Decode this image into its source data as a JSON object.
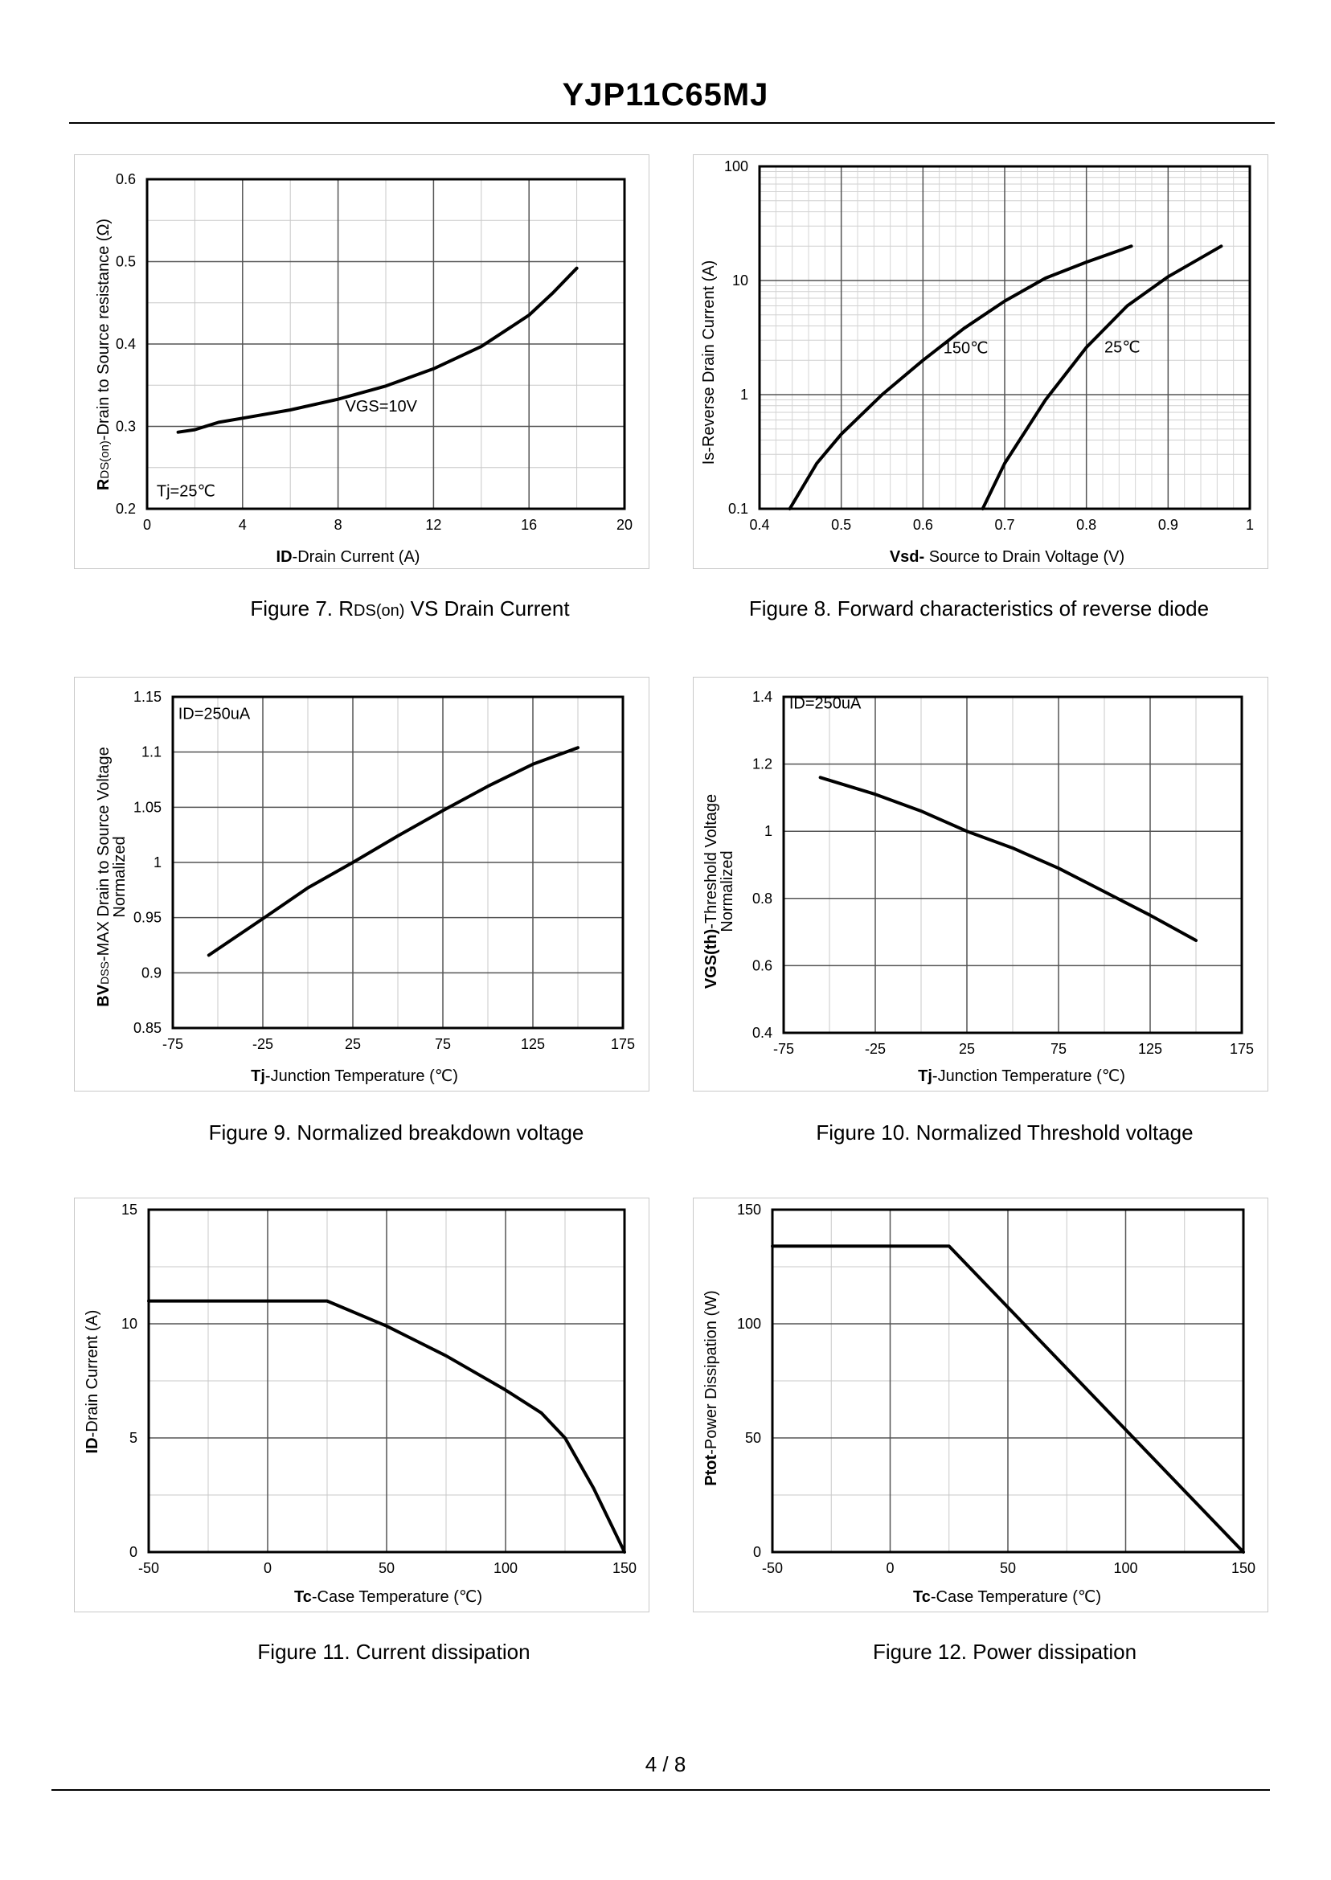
{
  "page": {
    "title": "YJP11C65MJ",
    "page_number": "4 / 8"
  },
  "chart_data": [
    {
      "id": "fig7",
      "type": "line",
      "caption_pre": "Figure 7.  R",
      "caption_sub": "DS(on)",
      "caption_post": " VS Drain Current",
      "ylabel_bold": "R",
      "ylabel_sub": "DS(on)",
      "ylabel_rest": "-Drain to Source resistance (Ω)",
      "xlabel_bold": "ID",
      "xlabel_rest": "-Drain Current (A)",
      "xlim": [
        0,
        20
      ],
      "ylim": [
        0.2,
        0.6
      ],
      "xticks": [
        0,
        4,
        8,
        12,
        16,
        20
      ],
      "xtick_labels": [
        "0",
        "4",
        "8",
        "12",
        "16",
        "20"
      ],
      "xminor": [
        2,
        6,
        10,
        14,
        18
      ],
      "yticks": [
        0.2,
        0.3,
        0.4,
        0.5,
        0.6
      ],
      "ytick_labels": [
        "0.2",
        "0.3",
        "0.4",
        "0.5",
        "0.6"
      ],
      "yminor": [
        0.25,
        0.35,
        0.45,
        0.55
      ],
      "annotations": [
        {
          "text": "VGS=10V",
          "x": 8.3,
          "y": 0.318
        },
        {
          "text": "Tj=25℃",
          "x": 0.4,
          "y": 0.215
        }
      ],
      "series": [
        {
          "name": "VGS=10V",
          "x": [
            1.3,
            2,
            3,
            4,
            6,
            8,
            10,
            12,
            14,
            16,
            17,
            18
          ],
          "y": [
            0.293,
            0.296,
            0.305,
            0.31,
            0.32,
            0.333,
            0.349,
            0.37,
            0.397,
            0.435,
            0.462,
            0.492
          ]
        }
      ]
    },
    {
      "id": "fig8",
      "type": "line",
      "yscale": "log",
      "caption": "Figure 8.  Forward characteristics of reverse diode",
      "ylabel": "Is-Reverse  Drain Current  (A)",
      "xlabel_bold": "Vsd-",
      "xlabel_rest": " Source to Drain Voltage (V)",
      "xlim": [
        0.4,
        1.0
      ],
      "ylim": [
        0.1,
        100
      ],
      "xticks": [
        0.4,
        0.5,
        0.6,
        0.7,
        0.8,
        0.9,
        1.0
      ],
      "xtick_labels": [
        "0.4",
        "0.5",
        "0.6",
        "0.7",
        "0.8",
        "0.9",
        "1"
      ],
      "yticks": [
        0.1,
        1,
        10,
        100
      ],
      "ytick_labels": [
        "0.1",
        "1",
        "10",
        "100"
      ],
      "annotations": [
        {
          "text": "150℃",
          "x": 0.625,
          "y": 2.3
        },
        {
          "text": "25℃",
          "x": 0.822,
          "y": 2.35
        }
      ],
      "series": [
        {
          "name": "150℃",
          "x": [
            0.437,
            0.47,
            0.5,
            0.55,
            0.6,
            0.65,
            0.7,
            0.75,
            0.8,
            0.855
          ],
          "y": [
            0.1,
            0.25,
            0.45,
            1.0,
            2.0,
            3.8,
            6.6,
            10.5,
            14.5,
            20
          ]
        },
        {
          "name": "25℃",
          "x": [
            0.673,
            0.7,
            0.75,
            0.8,
            0.85,
            0.9,
            0.965
          ],
          "y": [
            0.1,
            0.25,
            0.9,
            2.6,
            6.0,
            10.8,
            20
          ]
        }
      ]
    },
    {
      "id": "fig9",
      "type": "line",
      "caption": "Figure 9.  Normalized breakdown voltage",
      "ylabel1_bold": "BV",
      "ylabel1_sub": "DSS",
      "ylabel1_rest": "-MAX Drain to Source Voltage",
      "ylabel2": "Normalized",
      "xlabel_bold": "Tj",
      "xlabel_rest": "-Junction  Temperature  (℃)",
      "xlim": [
        -75,
        175
      ],
      "ylim": [
        0.85,
        1.15
      ],
      "xticks": [
        -75,
        -25,
        25,
        75,
        125,
        175
      ],
      "xtick_labels": [
        "-75",
        "-25",
        "25",
        "75",
        "125",
        "175"
      ],
      "xminor": [
        -50,
        0,
        50,
        100,
        150
      ],
      "yticks": [
        0.85,
        0.9,
        0.95,
        1.0,
        1.05,
        1.1,
        1.15
      ],
      "ytick_labels": [
        "0.85",
        "0.9",
        "0.95",
        "1",
        "1.05",
        "1.1",
        "1.15"
      ],
      "annotations": [
        {
          "text": "ID=250uA",
          "x": -72,
          "y": 1.13
        }
      ],
      "series": [
        {
          "name": "ID=250uA",
          "x": [
            -55,
            -25,
            0,
            25,
            50,
            75,
            100,
            125,
            150
          ],
          "y": [
            0.916,
            0.949,
            0.977,
            1.0,
            1.024,
            1.047,
            1.069,
            1.089,
            1.104
          ]
        }
      ]
    },
    {
      "id": "fig10",
      "type": "line",
      "caption": "Figure 10.  Normalized Threshold voltage",
      "ylabel1_bold": "VGS(th)",
      "ylabel1_rest": "-Threshold  Voltage",
      "ylabel2": "Normalized",
      "xlabel_bold": "Tj",
      "xlabel_rest": "-Junction  Temperature  (℃)",
      "xlim": [
        -75,
        175
      ],
      "ylim": [
        0.4,
        1.4
      ],
      "xticks": [
        -75,
        -25,
        25,
        75,
        125,
        175
      ],
      "xtick_labels": [
        "-75",
        "-25",
        "25",
        "75",
        "125",
        "175"
      ],
      "xminor": [
        -50,
        0,
        50,
        100,
        150
      ],
      "yticks": [
        0.4,
        0.6,
        0.8,
        1.0,
        1.2,
        1.4
      ],
      "ytick_labels": [
        "0.4",
        "0.6",
        "0.8",
        "1",
        "1.2",
        "1.4"
      ],
      "annotations": [
        {
          "text": "ID=250uA",
          "x": -72,
          "y": 1.365
        }
      ],
      "series": [
        {
          "name": "ID=250uA",
          "x": [
            -55,
            -25,
            0,
            25,
            50,
            75,
            100,
            125,
            150
          ],
          "y": [
            1.16,
            1.11,
            1.06,
            1.0,
            0.95,
            0.89,
            0.82,
            0.75,
            0.675
          ]
        }
      ]
    },
    {
      "id": "fig11",
      "type": "line",
      "caption": "Figure 11.  Current dissipation",
      "ylabel_bold": "ID",
      "ylabel_rest": "-Drain Current  (A)",
      "xlabel_bold": "Tc",
      "xlabel_rest": "-Case Temperature  (℃)",
      "xlim": [
        -50,
        150
      ],
      "ylim": [
        0,
        15
      ],
      "xticks": [
        -50,
        0,
        50,
        100,
        150
      ],
      "xtick_labels": [
        "-50",
        "0",
        "50",
        "100",
        "150"
      ],
      "xminor": [
        -25,
        25,
        75,
        125
      ],
      "yticks": [
        0,
        5,
        10,
        15
      ],
      "ytick_labels": [
        "0",
        "5",
        "10",
        "15"
      ],
      "yminor": [
        2.5,
        7.5,
        12.5
      ],
      "series": [
        {
          "name": "ID",
          "x": [
            -50,
            25,
            50,
            75,
            100,
            115,
            125,
            137,
            150
          ],
          "y": [
            11.0,
            11.0,
            9.9,
            8.6,
            7.1,
            6.1,
            5.0,
            2.8,
            0
          ]
        }
      ]
    },
    {
      "id": "fig12",
      "type": "line",
      "caption": "Figure 12.  Power dissipation",
      "ylabel_bold": "Ptot",
      "ylabel_rest": "-Power Dissipation  (W)",
      "xlabel_bold": "Tc",
      "xlabel_rest": "-Case Temperature  (℃)",
      "xlim": [
        -50,
        150
      ],
      "ylim": [
        0,
        150
      ],
      "xticks": [
        -50,
        0,
        50,
        100,
        150
      ],
      "xtick_labels": [
        "-50",
        "0",
        "50",
        "100",
        "150"
      ],
      "xminor": [
        -25,
        25,
        75,
        125
      ],
      "yticks": [
        0,
        50,
        100,
        150
      ],
      "ytick_labels": [
        "0",
        "50",
        "100",
        "150"
      ],
      "yminor": [
        25,
        75,
        125
      ],
      "series": [
        {
          "name": "Ptot",
          "x": [
            -50,
            25,
            150
          ],
          "y": [
            134,
            134,
            0
          ]
        }
      ]
    }
  ]
}
